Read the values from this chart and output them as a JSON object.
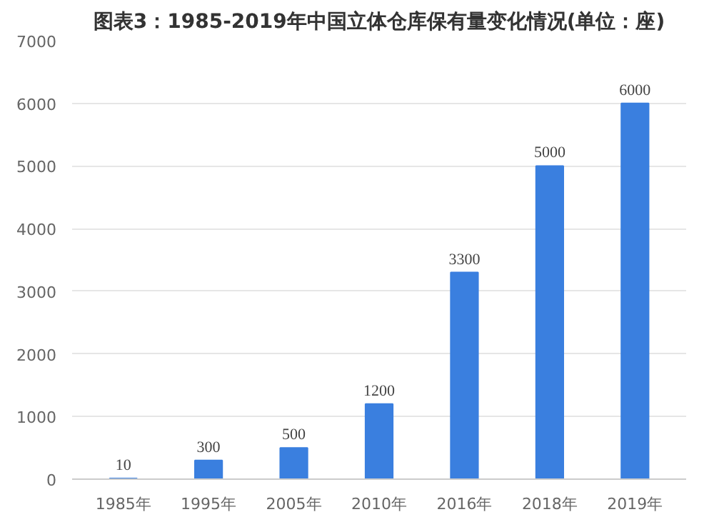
{
  "chart_data": {
    "type": "bar",
    "title": "图表3：1985-2019年中国立体仓库保有量变化情况(单位：座)",
    "categories": [
      "1985年",
      "1995年",
      "2005年",
      "2010年",
      "2016年",
      "2018年",
      "2019年"
    ],
    "values": [
      10,
      300,
      500,
      1200,
      3300,
      5000,
      6000
    ],
    "color": "#3a7fdf",
    "ylim": [
      0,
      7000
    ],
    "yticks": [
      0,
      1000,
      2000,
      3000,
      4000,
      5000,
      6000,
      7000
    ],
    "grid": "y",
    "data_labels": true
  }
}
